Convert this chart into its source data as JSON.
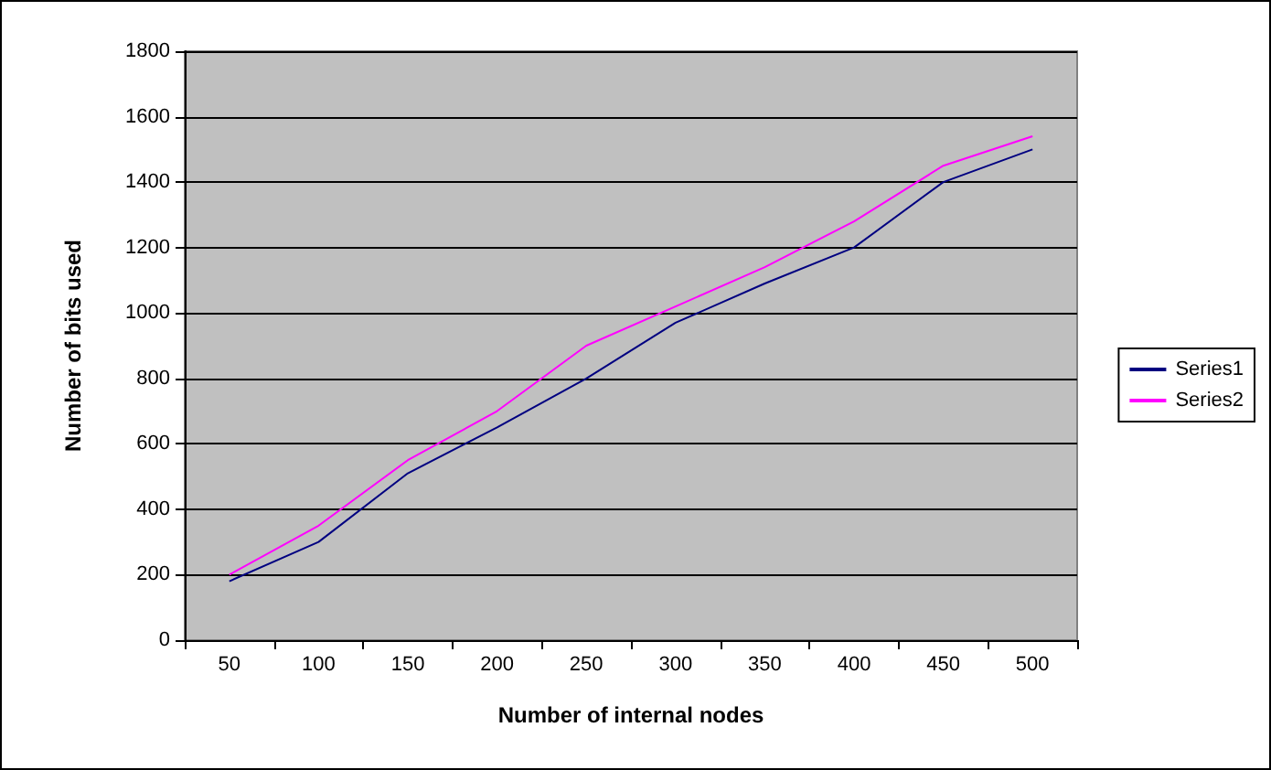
{
  "chart_data": {
    "type": "line",
    "xlabel": "Number of internal nodes",
    "ylabel": "Number of bits used",
    "categories": [
      "50",
      "100",
      "150",
      "200",
      "250",
      "300",
      "350",
      "400",
      "450",
      "500"
    ],
    "series": [
      {
        "name": "Series1",
        "color": "#000080",
        "values": [
          180,
          300,
          510,
          650,
          800,
          970,
          1090,
          1200,
          1400,
          1500
        ]
      },
      {
        "name": "Series2",
        "color": "#ff00ff",
        "values": [
          200,
          350,
          550,
          700,
          900,
          1020,
          1140,
          1280,
          1450,
          1540
        ]
      }
    ],
    "ylim": [
      0,
      1800
    ],
    "yticks": [
      0,
      200,
      400,
      600,
      800,
      1000,
      1200,
      1400,
      1600,
      1800
    ],
    "grid": "y",
    "legend": "right",
    "marker": "none",
    "line_style": "solid"
  }
}
